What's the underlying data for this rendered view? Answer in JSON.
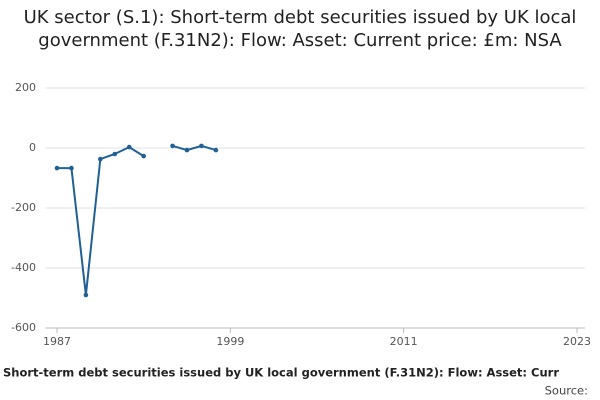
{
  "chart_data": {
    "type": "line",
    "title": "UK sector (S.1): Short-term debt securities issued by UK local government (F.31N2): Flow: Asset: Current price: £m: NSA",
    "x": [
      1987,
      1988,
      1989,
      1990,
      1991,
      1992,
      1993,
      1994,
      1995,
      1996,
      1997,
      1998
    ],
    "series": [
      {
        "name": "Short-term debt securities issued by UK local government (F.31N2): Flow: Asset: Curr",
        "color": "#206095",
        "values": [
          -67,
          -67,
          -490,
          -37,
          -20,
          3,
          -27,
          null,
          7,
          -7,
          7,
          -7
        ]
      }
    ],
    "xlim": [
      1987,
      2023
    ],
    "xticks": [
      1987,
      1999,
      2011,
      2023
    ],
    "ylim": [
      -600,
      200
    ],
    "yticks": [
      -600,
      -400,
      -200,
      0,
      200
    ],
    "grid": true,
    "source": "Source:"
  }
}
